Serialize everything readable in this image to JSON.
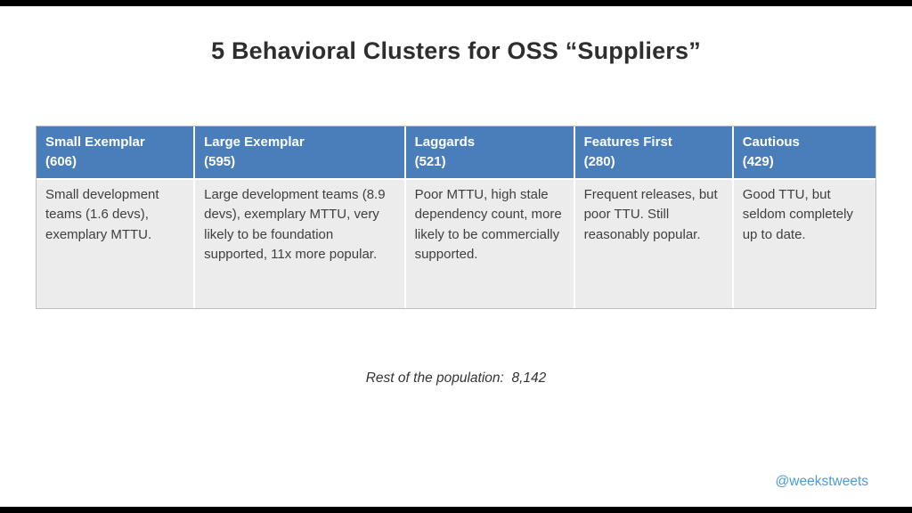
{
  "slide": {
    "title": "5 Behavioral Clusters for OSS “Suppliers”",
    "footer_note": "Rest of the population:  8,142",
    "handle": "@weekstweets"
  },
  "colors": {
    "table_header_bg": "#4a7ebb",
    "table_body_bg": "#ececec",
    "handle_blue": "#4a9bd4",
    "letterbox_black": "#000000"
  },
  "table": {
    "columns": [
      {
        "name": "Small Exemplar",
        "count": "(606)",
        "description": "Small development teams (1.6 devs), exemplary MTTU."
      },
      {
        "name": "Large Exemplar",
        "count": "(595)",
        "description": "Large development teams (8.9 devs), exemplary MTTU, very likely to be foundation supported, 11x more popular."
      },
      {
        "name": "Laggards",
        "count": "(521)",
        "description": "Poor MTTU, high stale dependency count, more likely to be commercially supported."
      },
      {
        "name": "Features First",
        "count": "(280)",
        "description": "Frequent releases, but poor TTU. Still reasonably popular."
      },
      {
        "name": "Cautious",
        "count": "(429)",
        "description": "Good TTU, but seldom completely up to date."
      }
    ]
  }
}
